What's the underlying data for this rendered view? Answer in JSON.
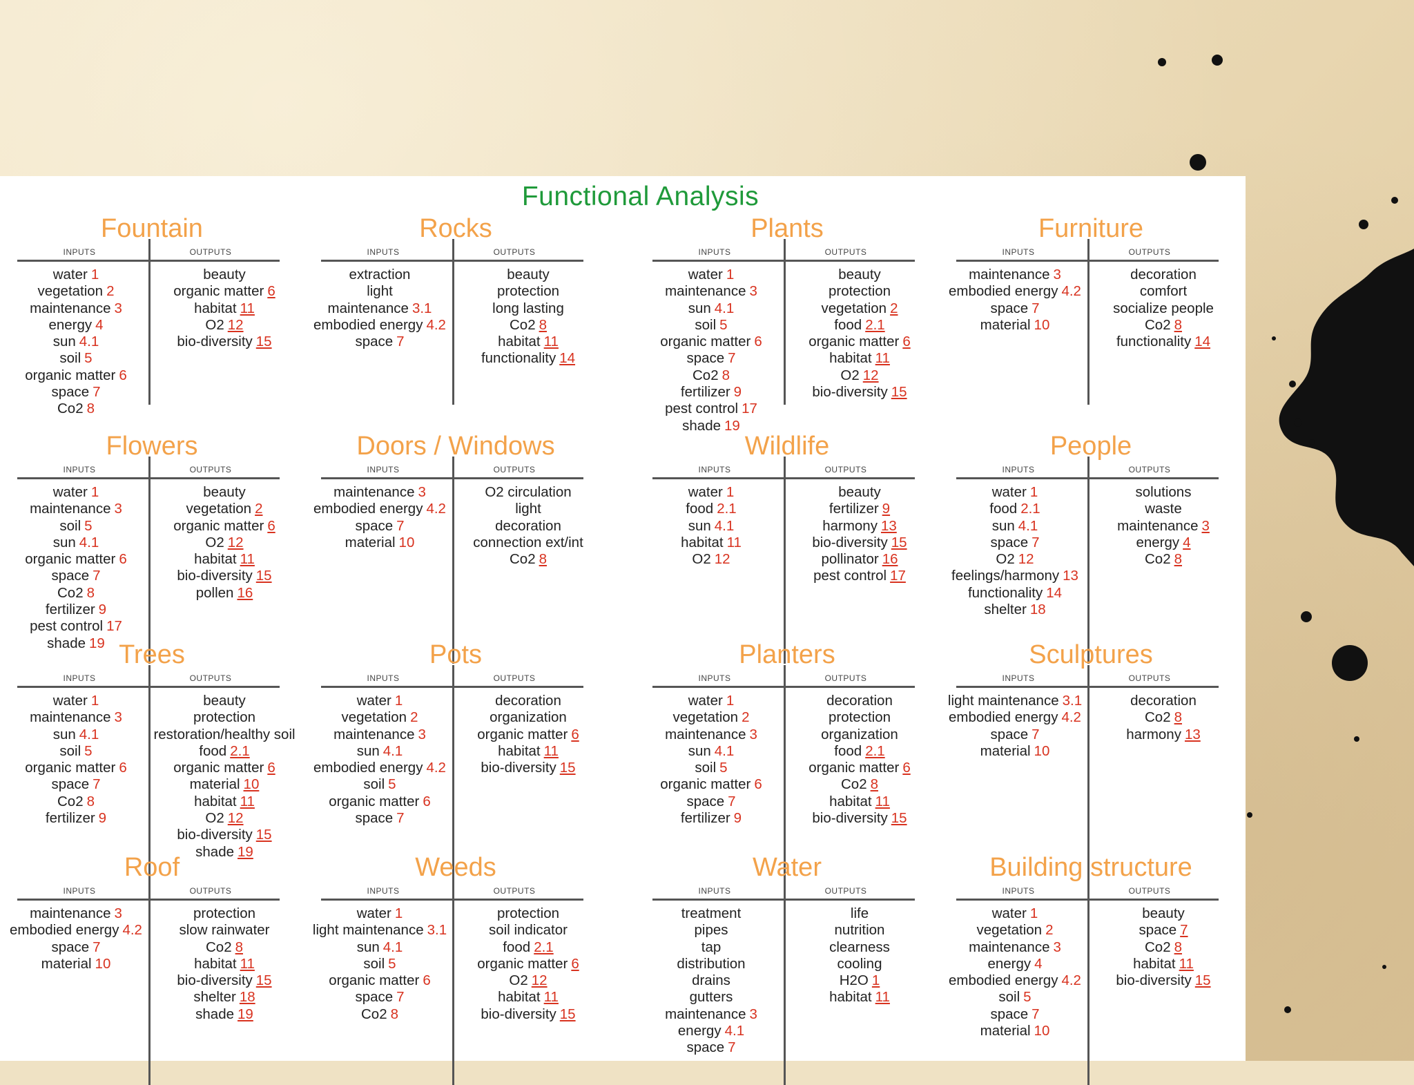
{
  "title": "Functional Analysis",
  "labels": {
    "inputs": "INPUTS",
    "outputs": "OUTPUTS"
  },
  "sections": [
    {
      "title": "Fountain",
      "inputs": [
        [
          "water",
          "1"
        ],
        [
          "vegetation",
          "2"
        ],
        [
          "maintenance",
          "3"
        ],
        [
          "energy",
          "4"
        ],
        [
          "sun",
          "4.1"
        ],
        [
          "soil",
          "5"
        ],
        [
          "organic matter",
          "6"
        ],
        [
          "space",
          "7"
        ],
        [
          "Co2",
          "8"
        ]
      ],
      "outputs": [
        [
          "beauty",
          ""
        ],
        [
          "organic matter",
          "6"
        ],
        [
          "habitat",
          "11"
        ],
        [
          "O2",
          "12"
        ],
        [
          "bio-diversity",
          "15"
        ]
      ]
    },
    {
      "title": "Rocks",
      "inputs": [
        [
          "extraction",
          ""
        ],
        [
          "light",
          ""
        ],
        [
          "maintenance",
          "3.1"
        ],
        [
          "embodied energy",
          "4.2"
        ],
        [
          "space",
          "7"
        ]
      ],
      "outputs": [
        [
          "beauty",
          ""
        ],
        [
          "protection",
          ""
        ],
        [
          "long lasting",
          ""
        ],
        [
          "Co2",
          "8"
        ],
        [
          "habitat",
          "11"
        ],
        [
          "functionality",
          "14"
        ]
      ]
    },
    {
      "title": "Plants",
      "inputs": [
        [
          "water",
          "1"
        ],
        [
          "maintenance",
          "3"
        ],
        [
          "sun",
          "4.1"
        ],
        [
          "soil",
          "5"
        ],
        [
          "organic matter",
          "6"
        ],
        [
          "space",
          "7"
        ],
        [
          "Co2",
          "8"
        ],
        [
          "fertilizer",
          "9"
        ],
        [
          "pest control",
          "17"
        ],
        [
          "shade",
          "19"
        ]
      ],
      "outputs": [
        [
          "beauty",
          ""
        ],
        [
          "protection",
          ""
        ],
        [
          "vegetation",
          "2"
        ],
        [
          "food",
          "2.1"
        ],
        [
          "organic matter",
          "6"
        ],
        [
          "habitat",
          "11"
        ],
        [
          "O2",
          "12"
        ],
        [
          "bio-diversity",
          "15"
        ]
      ]
    },
    {
      "title": "Furniture",
      "inputs": [
        [
          "maintenance",
          "3"
        ],
        [
          "embodied energy",
          "4.2"
        ],
        [
          "space",
          "7"
        ],
        [
          "material",
          "10"
        ]
      ],
      "outputs": [
        [
          "decoration",
          ""
        ],
        [
          "comfort",
          ""
        ],
        [
          "socialize people",
          ""
        ],
        [
          "Co2",
          "8"
        ],
        [
          "functionality",
          "14"
        ]
      ]
    },
    {
      "title": "Flowers",
      "inputs": [
        [
          "water",
          "1"
        ],
        [
          "maintenance",
          "3"
        ],
        [
          "soil",
          "5"
        ],
        [
          "sun",
          "4.1"
        ],
        [
          "organic matter",
          "6"
        ],
        [
          "space",
          "7"
        ],
        [
          "Co2",
          "8"
        ],
        [
          "fertilizer",
          "9"
        ],
        [
          "pest control",
          "17"
        ],
        [
          "shade",
          "19"
        ]
      ],
      "outputs": [
        [
          "beauty",
          ""
        ],
        [
          "vegetation",
          "2"
        ],
        [
          "organic matter",
          "6"
        ],
        [
          "O2",
          "12"
        ],
        [
          "habitat",
          "11"
        ],
        [
          "bio-diversity",
          "15"
        ],
        [
          "pollen",
          "16"
        ]
      ]
    },
    {
      "title": "Doors / Windows",
      "inputs": [
        [
          "maintenance",
          "3"
        ],
        [
          "embodied energy",
          "4.2"
        ],
        [
          "space",
          "7"
        ],
        [
          "material",
          "10"
        ]
      ],
      "outputs": [
        [
          "O2 circulation",
          ""
        ],
        [
          "light",
          ""
        ],
        [
          "decoration",
          ""
        ],
        [
          "connection ext/int",
          ""
        ],
        [
          "Co2",
          "8"
        ]
      ]
    },
    {
      "title": "Wildlife",
      "inputs": [
        [
          "water",
          "1"
        ],
        [
          "food",
          "2.1"
        ],
        [
          "sun",
          "4.1"
        ],
        [
          "habitat",
          "11"
        ],
        [
          "O2",
          "12"
        ]
      ],
      "outputs": [
        [
          "beauty",
          ""
        ],
        [
          "fertilizer",
          "9"
        ],
        [
          "harmony",
          "13"
        ],
        [
          "bio-diversity",
          "15"
        ],
        [
          "pollinator",
          "16"
        ],
        [
          "pest control",
          "17"
        ]
      ]
    },
    {
      "title": "People",
      "inputs": [
        [
          "water",
          "1"
        ],
        [
          "food",
          "2.1"
        ],
        [
          "sun",
          "4.1"
        ],
        [
          "space",
          "7"
        ],
        [
          "O2",
          "12"
        ],
        [
          "feelings/harmony",
          "13"
        ],
        [
          "functionality",
          "14"
        ],
        [
          "shelter",
          "18"
        ]
      ],
      "outputs": [
        [
          "solutions",
          ""
        ],
        [
          "waste",
          ""
        ],
        [
          "maintenance",
          "3"
        ],
        [
          "energy",
          "4"
        ],
        [
          "Co2",
          "8"
        ]
      ]
    },
    {
      "title": "Trees",
      "inputs": [
        [
          "water",
          "1"
        ],
        [
          "maintenance",
          "3"
        ],
        [
          "sun",
          "4.1"
        ],
        [
          "soil",
          "5"
        ],
        [
          "organic matter",
          "6"
        ],
        [
          "space",
          "7"
        ],
        [
          "Co2",
          "8"
        ],
        [
          "fertilizer",
          "9"
        ]
      ],
      "outputs": [
        [
          "beauty",
          ""
        ],
        [
          "protection",
          ""
        ],
        [
          "restoration/healthy soil",
          ""
        ],
        [
          "food",
          "2.1"
        ],
        [
          "organic matter",
          "6"
        ],
        [
          "material",
          "10"
        ],
        [
          "habitat",
          "11"
        ],
        [
          "O2",
          "12"
        ],
        [
          "bio-diversity",
          "15"
        ],
        [
          "shade",
          "19"
        ]
      ]
    },
    {
      "title": "Pots",
      "inputs": [
        [
          "water",
          "1"
        ],
        [
          "vegetation",
          "2"
        ],
        [
          "maintenance",
          "3"
        ],
        [
          "sun",
          "4.1"
        ],
        [
          "embodied energy",
          "4.2"
        ],
        [
          "soil",
          "5"
        ],
        [
          "organic matter",
          "6"
        ],
        [
          "space",
          "7"
        ]
      ],
      "outputs": [
        [
          "decoration",
          ""
        ],
        [
          "organization",
          ""
        ],
        [
          "organic matter",
          "6"
        ],
        [
          "habitat",
          "11"
        ],
        [
          "bio-diversity",
          "15"
        ]
      ]
    },
    {
      "title": "Planters",
      "inputs": [
        [
          "water",
          "1"
        ],
        [
          "vegetation",
          "2"
        ],
        [
          "maintenance",
          "3"
        ],
        [
          "sun",
          "4.1"
        ],
        [
          "soil",
          "5"
        ],
        [
          "organic matter",
          "6"
        ],
        [
          "space",
          "7"
        ],
        [
          "fertilizer",
          "9"
        ]
      ],
      "outputs": [
        [
          "decoration",
          ""
        ],
        [
          "protection",
          ""
        ],
        [
          "organization",
          ""
        ],
        [
          "food",
          "2.1"
        ],
        [
          "organic matter",
          "6"
        ],
        [
          "Co2",
          "8"
        ],
        [
          "habitat",
          "11"
        ],
        [
          "bio-diversity",
          "15"
        ]
      ]
    },
    {
      "title": "Sculptures",
      "inputs": [
        [
          "light maintenance",
          "3.1"
        ],
        [
          "embodied energy",
          "4.2"
        ],
        [
          "space",
          "7"
        ],
        [
          "material",
          "10"
        ]
      ],
      "outputs": [
        [
          "decoration",
          ""
        ],
        [
          "Co2",
          "8"
        ],
        [
          "harmony",
          "13"
        ]
      ]
    },
    {
      "title": "Roof",
      "inputs": [
        [
          "maintenance",
          "3"
        ],
        [
          "embodied energy",
          "4.2"
        ],
        [
          "space",
          "7"
        ],
        [
          "material",
          "10"
        ]
      ],
      "outputs": [
        [
          "protection",
          ""
        ],
        [
          "slow rainwater",
          ""
        ],
        [
          "Co2",
          "8"
        ],
        [
          "habitat",
          "11"
        ],
        [
          "bio-diversity",
          "15"
        ],
        [
          "shelter",
          "18"
        ],
        [
          "shade",
          "19"
        ]
      ]
    },
    {
      "title": "Weeds",
      "inputs": [
        [
          "water",
          "1"
        ],
        [
          "light maintenance",
          "3.1"
        ],
        [
          "sun",
          "4.1"
        ],
        [
          "soil",
          "5"
        ],
        [
          "organic matter",
          "6"
        ],
        [
          "space",
          "7"
        ],
        [
          "Co2",
          "8"
        ]
      ],
      "outputs": [
        [
          "protection",
          ""
        ],
        [
          "soil indicator",
          ""
        ],
        [
          "food",
          "2.1"
        ],
        [
          "organic matter",
          "6"
        ],
        [
          "O2",
          "12"
        ],
        [
          "habitat",
          "11"
        ],
        [
          "bio-diversity",
          "15"
        ]
      ]
    },
    {
      "title": "Water",
      "inputs": [
        [
          "treatment",
          ""
        ],
        [
          "pipes",
          ""
        ],
        [
          "tap",
          ""
        ],
        [
          "distribution",
          ""
        ],
        [
          "drains",
          ""
        ],
        [
          "gutters",
          ""
        ],
        [
          "maintenance",
          "3"
        ],
        [
          "energy",
          "4.1"
        ],
        [
          "space",
          "7"
        ]
      ],
      "outputs": [
        [
          "life",
          ""
        ],
        [
          "nutrition",
          ""
        ],
        [
          "clearness",
          ""
        ],
        [
          "cooling",
          ""
        ],
        [
          "H2O",
          "1"
        ],
        [
          "habitat",
          "11"
        ]
      ]
    },
    {
      "title": "Building structure",
      "inputs": [
        [
          "water",
          "1"
        ],
        [
          "vegetation",
          "2"
        ],
        [
          "maintenance",
          "3"
        ],
        [
          "energy",
          "4"
        ],
        [
          "embodied energy",
          "4.2"
        ],
        [
          "soil",
          "5"
        ],
        [
          "space",
          "7"
        ],
        [
          "material",
          "10"
        ]
      ],
      "outputs": [
        [
          "beauty",
          ""
        ],
        [
          "space",
          "7"
        ],
        [
          "Co2",
          "8"
        ],
        [
          "habitat",
          "11"
        ],
        [
          "bio-diversity",
          "15"
        ]
      ]
    }
  ]
}
